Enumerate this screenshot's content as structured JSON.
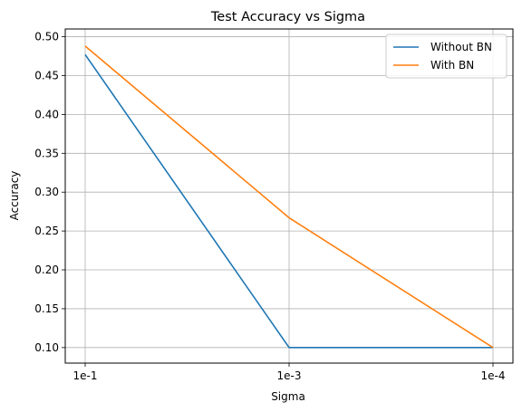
{
  "chart_data": {
    "type": "line",
    "title": "Test Accuracy vs Sigma",
    "xlabel": "Sigma",
    "ylabel": "Accuracy",
    "categories": [
      "1e-1",
      "1e-3",
      "1e-4"
    ],
    "ylim": [
      0.08,
      0.51
    ],
    "yticks": [
      0.1,
      0.15,
      0.2,
      0.25,
      0.3,
      0.35,
      0.4,
      0.45,
      0.5
    ],
    "grid": true,
    "legend_position": "top-right",
    "series": [
      {
        "name": "Without BN",
        "color": "#1f77b4",
        "values": [
          0.477,
          0.1,
          0.1
        ]
      },
      {
        "name": "With BN",
        "color": "#ff7f0e",
        "values": [
          0.488,
          0.267,
          0.1
        ]
      }
    ]
  }
}
